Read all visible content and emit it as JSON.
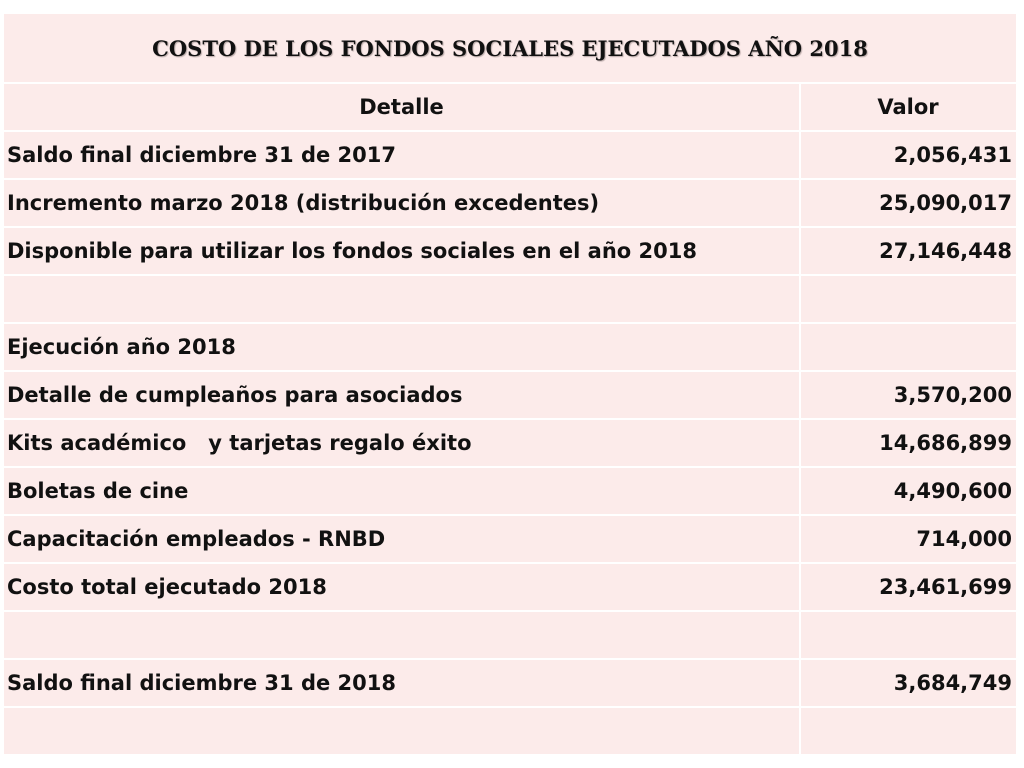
{
  "table": {
    "title": "COSTO DE LOS FONDOS SOCIALES EJECUTADOS AÑO 2018",
    "headers": {
      "detail": "Detalle",
      "value": "Valor"
    },
    "rows": [
      {
        "detail": "Saldo final diciembre 31 de 2017",
        "value": "2,056,431"
      },
      {
        "detail": "Incremento marzo 2018 (distribución excedentes)",
        "value": "25,090,017"
      },
      {
        "detail": "Disponible para utilizar los fondos sociales en el año 2018",
        "value": "27,146,448"
      },
      {
        "detail": "",
        "value": ""
      },
      {
        "detail": "Ejecución año 2018",
        "value": ""
      },
      {
        "detail": "Detalle de cumpleaños para asociados",
        "value": "3,570,200"
      },
      {
        "detail": "Kits académico   y tarjetas regalo éxito",
        "value": "14,686,899"
      },
      {
        "detail": "Boletas de cine",
        "value": "4,490,600"
      },
      {
        "detail": "Capacitación empleados - RNBD",
        "value": "714,000"
      },
      {
        "detail": "Costo total ejecutado 2018",
        "value": "23,461,699"
      },
      {
        "detail": "",
        "value": ""
      },
      {
        "detail": "Saldo final diciembre 31 de 2018",
        "value": "3,684,749"
      },
      {
        "detail": "",
        "value": ""
      }
    ]
  }
}
